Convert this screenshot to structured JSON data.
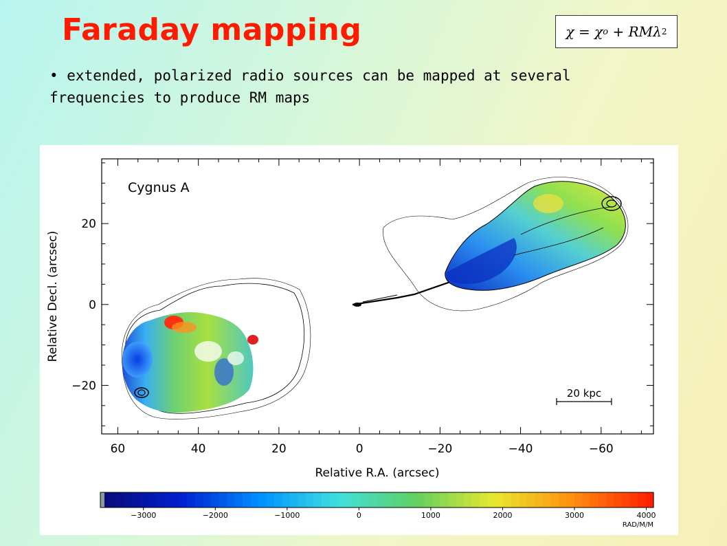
{
  "slide": {
    "title": "Faraday mapping",
    "bullet_text": "• extended, polarized radio sources can be mapped at several frequencies to produce RM maps"
  },
  "formula": {
    "chi": "χ",
    "equals": " = ",
    "chi0": "χ",
    "subscript": "o",
    "plus": " + ",
    "rm": "RMλ",
    "power": "2"
  },
  "chart_data": {
    "type": "heatmap",
    "annotation": "Cygnus A",
    "xlabel": "Relative R.A. (arcsec)",
    "ylabel": "Relative Decl. (arcsec)",
    "x_ticks": [
      "60",
      "40",
      "20",
      "0",
      "−20",
      "−40",
      "−60"
    ],
    "x_tick_values": [
      60,
      40,
      20,
      0,
      -20,
      -40,
      -60
    ],
    "y_ticks": [
      "20",
      "0",
      "−20"
    ],
    "y_tick_values": [
      20,
      0,
      -20
    ],
    "xlim": [
      64,
      -73
    ],
    "ylim": [
      -32,
      36
    ],
    "scale_bar_label": "20 kpc",
    "colorbar": {
      "ticks": [
        "−3000",
        "−2000",
        "−1000",
        "0",
        "1000",
        "2000",
        "3000",
        "4000"
      ],
      "tick_values": [
        -3000,
        -2000,
        -1000,
        0,
        1000,
        2000,
        3000,
        4000
      ],
      "range": [
        -3600,
        4100
      ],
      "unit": "RAD/M/M",
      "colors": [
        "#0a0a7a",
        "#0020d0",
        "#0090ff",
        "#40e0e0",
        "#60d060",
        "#e8e830",
        "#ff9010",
        "#ff2000"
      ]
    }
  }
}
